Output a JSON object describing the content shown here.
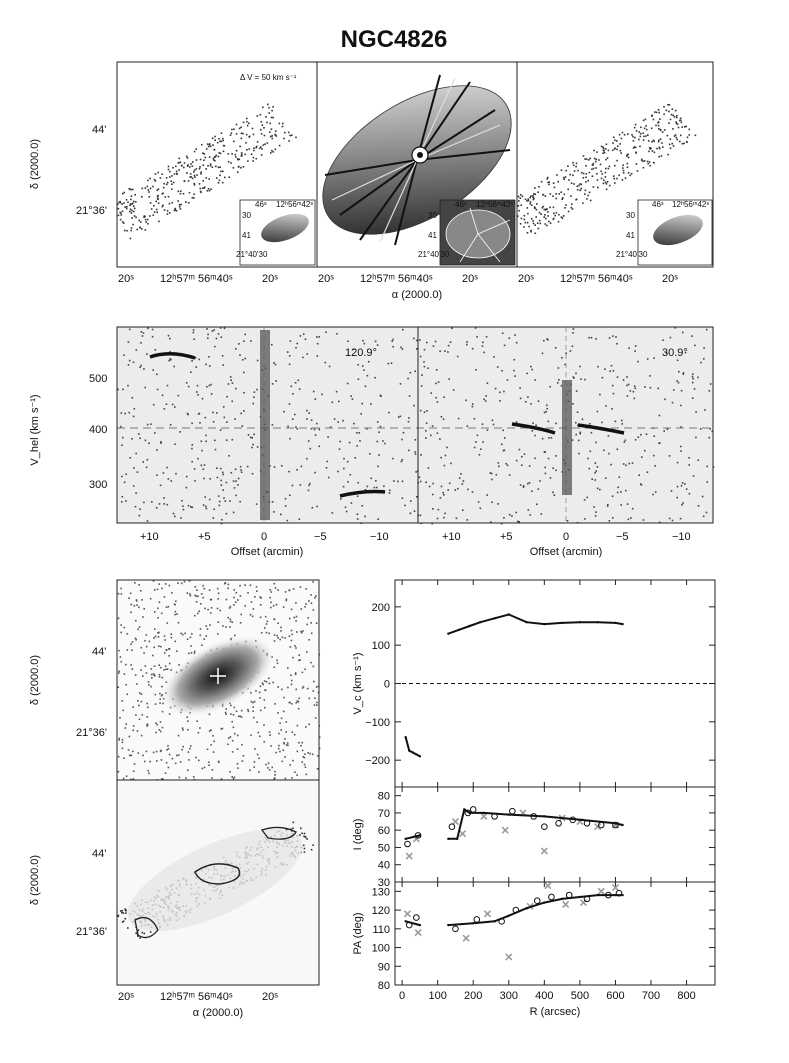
{
  "title": "NGC4826",
  "colors": {
    "frame": "#222222",
    "curve": "#111111",
    "gray_data": "#9a9a9a",
    "open_marker": "#111111",
    "cross_marker": "#9a9a9a"
  },
  "velfield": {
    "annotation": "Δ V = 50 km s⁻¹",
    "ylabel": "δ (2000.0)",
    "xlabel": "α (2000.0)",
    "yticks": [
      "44'",
      "21°36'"
    ],
    "xticks": [
      "20ˢ",
      "12ʰ57ᵐ 56ᵐ40ˢ",
      "20ˢ"
    ],
    "inset_xticks": [
      "46ˢ",
      "12ʰ56ᵐ42ˢ"
    ],
    "inset_yticks": [
      "30",
      "41",
      "21°40'30"
    ]
  },
  "pv": {
    "ylabel": "V_hel (km s⁻¹)",
    "xlabel": "Offset (arcmin)",
    "yticks": [
      "500",
      "400",
      "300"
    ],
    "xticks": [
      "+10",
      "+5",
      "0",
      "−5",
      "−10"
    ],
    "angle_left": "120.9°",
    "angle_right": "30.9°"
  },
  "image_panels": {
    "ylabel": "δ (2000.0)",
    "xlabel": "α (2000.0)",
    "yticks": [
      "44'",
      "21°36'"
    ],
    "xticks": [
      "20ˢ",
      "12ʰ57ᵐ 56ᵐ40ˢ",
      "20ˢ"
    ]
  },
  "chart_data": [
    {
      "type": "line",
      "panel": "rotation curve",
      "ylabel": "V_c (km s⁻¹)",
      "xlim": [
        -20,
        880
      ],
      "ylim": [
        -270,
        270
      ],
      "yticks": [
        200,
        100,
        0,
        -100,
        -200
      ],
      "zero_line": "dashed",
      "series": [
        {
          "x": [
            10,
            20,
            30,
            40,
            50
          ],
          "values": [
            -140,
            -175,
            -180,
            -185,
            -190
          ]
        },
        {
          "x": [
            130,
            160,
            190,
            220,
            260,
            300,
            350,
            400,
            450,
            500,
            550,
            600,
            620
          ],
          "values": [
            130,
            140,
            150,
            160,
            170,
            180,
            160,
            155,
            158,
            160,
            160,
            158,
            155
          ]
        }
      ]
    },
    {
      "type": "line",
      "panel": "inclination",
      "ylabel": "I (deg)",
      "xlim": [
        -20,
        880
      ],
      "ylim": [
        30,
        85
      ],
      "yticks": [
        80,
        70,
        60,
        50,
        40,
        30
      ],
      "series": [
        {
          "x": [
            10,
            50
          ],
          "values": [
            55,
            57
          ]
        },
        {
          "x": [
            130,
            155,
            175,
            190,
            230,
            300,
            400,
            500,
            600,
            620
          ],
          "values": [
            55,
            55,
            72,
            70,
            70,
            69,
            68,
            66,
            64,
            63
          ]
        }
      ],
      "open_markers": {
        "x": [
          15,
          45,
          140,
          185,
          200,
          260,
          310,
          370,
          400,
          440,
          480,
          520,
          560,
          600
        ],
        "y": [
          52,
          57,
          62,
          70,
          72,
          68,
          71,
          68,
          62,
          64,
          66,
          64,
          63,
          63
        ]
      },
      "crosses": {
        "x": [
          20,
          40,
          150,
          170,
          230,
          290,
          340,
          400,
          450,
          500,
          550,
          600
        ],
        "y": [
          45,
          55,
          65,
          58,
          68,
          60,
          70,
          48,
          67,
          65,
          62,
          63
        ]
      }
    },
    {
      "type": "line",
      "panel": "position angle",
      "ylabel": "PA (deg)",
      "xlabel": "R (arcsec)",
      "xlim": [
        -20,
        880
      ],
      "ylim": [
        80,
        135
      ],
      "yticks": [
        130,
        120,
        110,
        100,
        90,
        80
      ],
      "xticks": [
        0,
        100,
        200,
        300,
        400,
        500,
        600,
        700,
        800
      ],
      "series": [
        {
          "x": [
            10,
            50
          ],
          "values": [
            114,
            112
          ]
        },
        {
          "x": [
            130,
            200,
            260,
            300,
            350,
            400,
            450,
            500,
            550,
            600,
            620
          ],
          "values": [
            112,
            113,
            114,
            117,
            121,
            124,
            126,
            127,
            128,
            128,
            128
          ]
        }
      ],
      "open_markers": {
        "x": [
          20,
          40,
          150,
          210,
          280,
          320,
          380,
          420,
          470,
          520,
          580,
          610
        ],
        "y": [
          112,
          116,
          110,
          115,
          114,
          120,
          125,
          127,
          128,
          126,
          128,
          129
        ]
      },
      "crosses": {
        "x": [
          15,
          45,
          180,
          240,
          300,
          360,
          410,
          460,
          510,
          560,
          600
        ],
        "y": [
          118,
          108,
          105,
          118,
          95,
          122,
          133,
          123,
          124,
          130,
          132
        ]
      }
    }
  ]
}
